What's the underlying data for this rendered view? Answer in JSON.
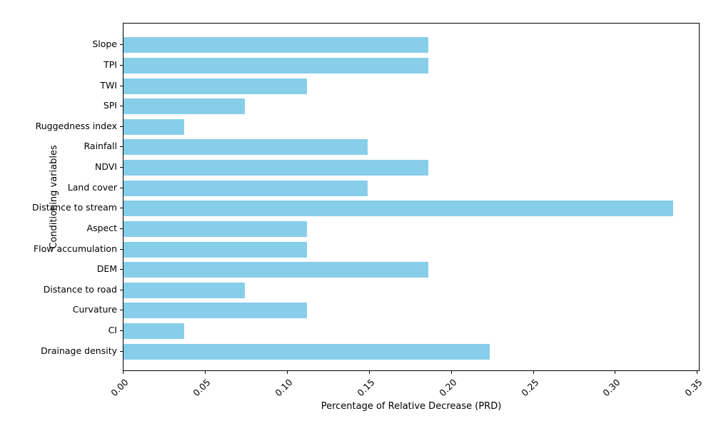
{
  "figure": {
    "background": "#ffffff",
    "axis_color": "#000000",
    "bar_color": "#87CEEB"
  },
  "chart_data": {
    "type": "bar",
    "orientation": "horizontal",
    "title": "",
    "xlabel": "Percentage of Relative Decrease (PRD)",
    "ylabel": "Conditioning variables",
    "categories": [
      "Slope",
      "TPI",
      "TWI",
      "SPI",
      "Ruggedness index",
      "Rainfall",
      "NDVI",
      "Land cover",
      "Distance to stream",
      "Aspect",
      "Flow accumulation",
      "DEM",
      "Distance to road",
      "Curvature",
      "CI",
      "Drainage density"
    ],
    "values": [
      0.186,
      0.186,
      0.112,
      0.074,
      0.037,
      0.149,
      0.186,
      0.149,
      0.335,
      0.112,
      0.112,
      0.186,
      0.074,
      0.112,
      0.037,
      0.223
    ],
    "xlim": [
      0,
      0.3516
    ],
    "xticks": [
      0.0,
      0.05,
      0.1,
      0.15,
      0.2,
      0.25,
      0.3,
      0.35
    ],
    "xtick_labels": [
      "0.00",
      "0.05",
      "0.10",
      "0.15",
      "0.20",
      "0.25",
      "0.30",
      "0.35"
    ],
    "grid": false,
    "legend": null
  }
}
